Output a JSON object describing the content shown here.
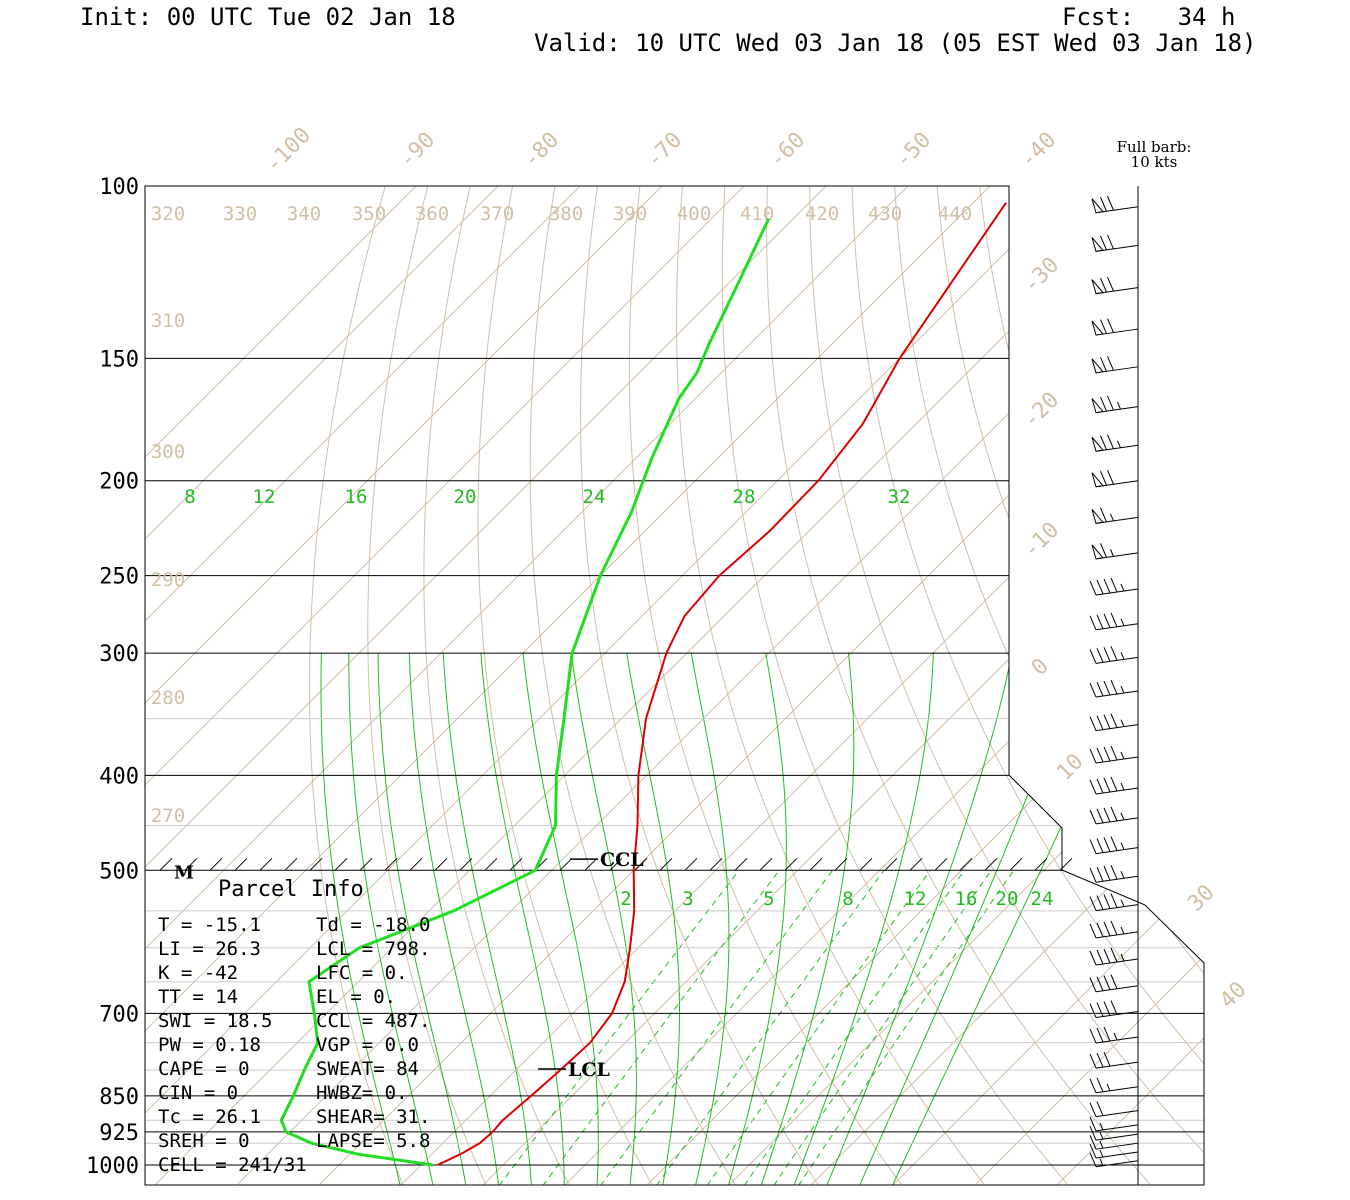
{
  "header": {
    "init": "Init: 00 UTC Tue 02 Jan 18",
    "forecast": "Fcst:   34 h",
    "valid": "Valid: 10 UTC Wed 03 Jan 18 (05 EST Wed 03 Jan 18)"
  },
  "chart_data": {
    "type": "line",
    "subtype": "skew-T log-P sounding",
    "y_axis": "pressure (hPa), log scale, decreasing upward",
    "pressure_ticks": [
      100,
      150,
      200,
      250,
      300,
      400,
      500,
      700,
      850,
      925,
      1000
    ],
    "isotherm_labels": [
      "-100",
      "-90",
      "-80",
      "-70",
      "-60",
      "-50",
      "-40",
      "-30",
      "-20",
      "-10",
      "0",
      "10",
      "30",
      "40"
    ],
    "dry_adiabat_labels": [
      "320",
      "330",
      "340",
      "350",
      "360",
      "370",
      "380",
      "390",
      "400",
      "410",
      "420",
      "430",
      "440",
      "310",
      "300",
      "290",
      "280",
      "270"
    ],
    "mixing_ratio_labels_upper": [
      "8",
      "12",
      "16",
      "20",
      "24",
      "28",
      "32"
    ],
    "mixing_ratio_labels_lower": [
      "2",
      "3",
      "5",
      "8",
      "12",
      "16",
      "20",
      "24"
    ],
    "wind_legend": [
      "Full barb:",
      "10 kts"
    ],
    "series": [
      {
        "name": "temperature",
        "color": "#dd0000",
        "points_p_t": [
          [
            1000,
            -18.0
          ],
          [
            975,
            -16.5
          ],
          [
            950,
            -15.5
          ],
          [
            925,
            -15.3
          ],
          [
            900,
            -15.5
          ],
          [
            850,
            -15.0
          ],
          [
            800,
            -14.6
          ],
          [
            750,
            -14.3
          ],
          [
            700,
            -15.2
          ],
          [
            650,
            -17.5
          ],
          [
            600,
            -21.0
          ],
          [
            550,
            -25.0
          ],
          [
            500,
            -30.0
          ],
          [
            450,
            -35.0
          ],
          [
            400,
            -41.0
          ],
          [
            350,
            -47.0
          ],
          [
            300,
            -52.5
          ],
          [
            275,
            -54.8
          ],
          [
            250,
            -55.5
          ],
          [
            225,
            -54.8
          ],
          [
            200,
            -55.0
          ],
          [
            175,
            -56.5
          ],
          [
            150,
            -60.0
          ],
          [
            125,
            -63.0
          ],
          [
            104,
            -66.0
          ]
        ]
      },
      {
        "name": "dewpoint",
        "color": "#22dd22",
        "points_p_t": [
          [
            1000,
            -18.6
          ],
          [
            975,
            -29.0
          ],
          [
            950,
            -36.0
          ],
          [
            925,
            -40.5
          ],
          [
            900,
            -42.5
          ],
          [
            850,
            -44.0
          ],
          [
            800,
            -45.8
          ],
          [
            750,
            -47.5
          ],
          [
            700,
            -51.5
          ],
          [
            650,
            -56.0
          ],
          [
            600,
            -54.0
          ],
          [
            550,
            -47.0
          ],
          [
            500,
            -42.0
          ],
          [
            450,
            -45.0
          ],
          [
            400,
            -51.0
          ],
          [
            350,
            -57.0
          ],
          [
            300,
            -64.0
          ],
          [
            250,
            -70.0
          ],
          [
            215,
            -74.0
          ],
          [
            190,
            -78.0
          ],
          [
            165,
            -82.0
          ],
          [
            155,
            -83.0
          ],
          [
            145,
            -85.0
          ],
          [
            125,
            -89.0
          ],
          [
            108,
            -93.0
          ]
        ]
      }
    ],
    "annotations": [
      {
        "label": "CCL",
        "pressure": 487
      },
      {
        "label": "LCL",
        "pressure": 798
      },
      {
        "label": "M",
        "pressure": 500
      }
    ],
    "wind_barbs": [
      {
        "p": 105,
        "kts": 70
      },
      {
        "p": 115,
        "kts": 70
      },
      {
        "p": 127,
        "kts": 70
      },
      {
        "p": 140,
        "kts": 70
      },
      {
        "p": 153,
        "kts": 70
      },
      {
        "p": 168,
        "kts": 75
      },
      {
        "p": 184,
        "kts": 75
      },
      {
        "p": 200,
        "kts": 70
      },
      {
        "p": 218,
        "kts": 65
      },
      {
        "p": 237,
        "kts": 65
      },
      {
        "p": 258,
        "kts": 45
      },
      {
        "p": 280,
        "kts": 45
      },
      {
        "p": 303,
        "kts": 45
      },
      {
        "p": 328,
        "kts": 45
      },
      {
        "p": 355,
        "kts": 45
      },
      {
        "p": 383,
        "kts": 45
      },
      {
        "p": 412,
        "kts": 45
      },
      {
        "p": 442,
        "kts": 45
      },
      {
        "p": 474,
        "kts": 45
      },
      {
        "p": 507,
        "kts": 45
      },
      {
        "p": 542,
        "kts": 45
      },
      {
        "p": 578,
        "kts": 45
      },
      {
        "p": 616,
        "kts": 45
      },
      {
        "p": 656,
        "kts": 40
      },
      {
        "p": 697,
        "kts": 40
      },
      {
        "p": 740,
        "kts": 35
      },
      {
        "p": 785,
        "kts": 30
      },
      {
        "p": 832,
        "kts": 25
      },
      {
        "p": 880,
        "kts": 20
      },
      {
        "p": 910,
        "kts": 15
      },
      {
        "p": 930,
        "kts": 15
      },
      {
        "p": 950,
        "kts": 15
      },
      {
        "p": 970,
        "kts": 15
      },
      {
        "p": 990,
        "kts": 15
      }
    ]
  },
  "parcel_info": {
    "title": "Parcel Info",
    "rows": [
      [
        "T  =   -15.1",
        "Td = -18.0"
      ],
      [
        "LI =    26.3",
        "LCL =  798."
      ],
      [
        "K  =     -42",
        "LFC =    0."
      ],
      [
        "TT =      14",
        "EL  =    0."
      ],
      [
        "SWI =   18.5",
        "CCL =  487."
      ],
      [
        "PW =    0.18",
        "VGP =   0.0"
      ],
      [
        "CAPE =     0",
        "SWEAT=   84"
      ],
      [
        "CIN =      0",
        "HWBZ=    0."
      ],
      [
        "Tc =    26.1",
        "SHEAR=  31."
      ],
      [
        "SREH =     0",
        "LAPSE=  5.8"
      ],
      [
        "CELL = 241/31",
        ""
      ]
    ]
  }
}
